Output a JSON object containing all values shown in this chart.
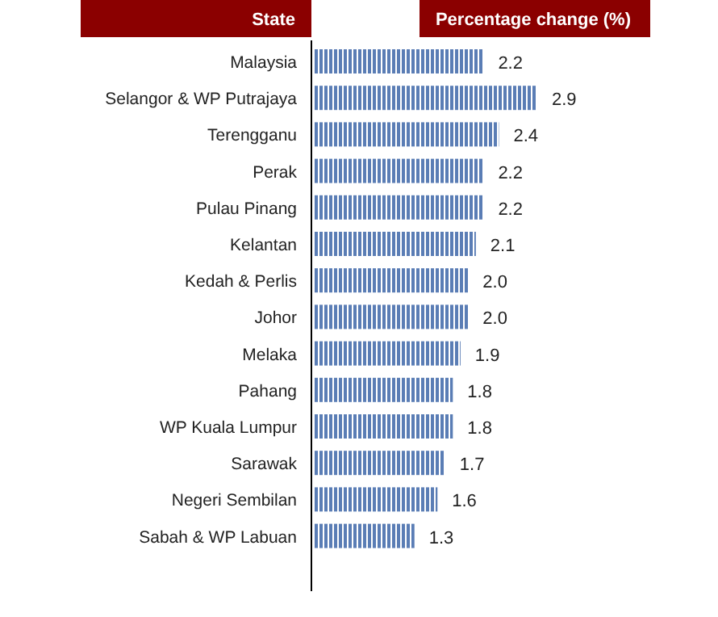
{
  "chart_data": {
    "type": "bar",
    "orientation": "horizontal",
    "ylabel": "State",
    "xlabel": "Percentage change (%)",
    "categories": [
      "Malaysia",
      "Selangor & WP Putrajaya",
      "Terengganu",
      "Perak",
      "Pulau Pinang",
      "Kelantan",
      "Kedah & Perlis",
      "Johor",
      "Melaka",
      "Pahang",
      "WP Kuala Lumpur",
      "Sarawak",
      "Negeri Sembilan",
      "Sabah & WP Labuan"
    ],
    "values": [
      2.2,
      2.9,
      2.4,
      2.2,
      2.2,
      2.1,
      2.0,
      2.0,
      1.9,
      1.8,
      1.8,
      1.7,
      1.6,
      1.3
    ],
    "value_labels": [
      "2.2",
      "2.9",
      "2.4",
      "2.2",
      "2.2",
      "2.1",
      "2.0",
      "2.0",
      "1.9",
      "1.8",
      "1.8",
      "1.7",
      "1.6",
      "1.3"
    ],
    "color": "#5a7db5"
  }
}
